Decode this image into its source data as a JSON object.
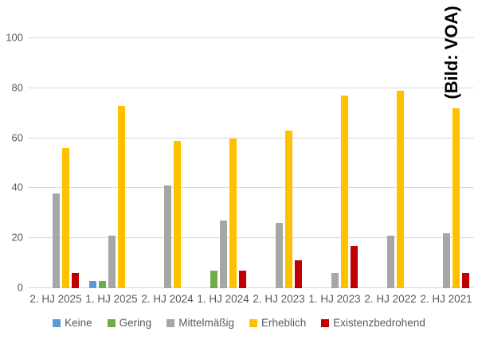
{
  "credit": "(Bild: VOA)",
  "colors": {
    "background": "#ffffff",
    "grid": "#d9d9d9",
    "axis_label": "#595959",
    "credit_text": "#000000"
  },
  "chart_data": {
    "type": "bar",
    "title": "",
    "xlabel": "",
    "ylabel": "",
    "ylim": [
      0,
      100
    ],
    "yticks": [
      0,
      20,
      40,
      60,
      80,
      100
    ],
    "grid": true,
    "legend_position": "bottom",
    "categories": [
      "2. HJ 2025",
      "1. HJ 2025",
      "2. HJ 2024",
      "1. HJ 2024",
      "2. HJ 2023",
      "1. HJ 2023",
      "2. HJ 2022",
      "2. HJ 2021"
    ],
    "series": [
      {
        "name": "Keine",
        "color": "#5b9bd5",
        "values": [
          0,
          3,
          0,
          0,
          0,
          0,
          0,
          0
        ]
      },
      {
        "name": "Gering",
        "color": "#70ad47",
        "values": [
          0,
          3,
          0,
          7,
          0,
          0,
          0,
          0
        ]
      },
      {
        "name": "Mittelmäßig",
        "color": "#a6a6a6",
        "values": [
          38,
          21,
          41,
          27,
          26,
          6,
          21,
          22
        ]
      },
      {
        "name": "Erheblich",
        "color": "#ffc000",
        "values": [
          56,
          73,
          59,
          60,
          63,
          77,
          79,
          72
        ]
      },
      {
        "name": "Existenzbedrohend",
        "color": "#c00000",
        "values": [
          6,
          0,
          0,
          7,
          11,
          17,
          0,
          6
        ]
      }
    ]
  }
}
